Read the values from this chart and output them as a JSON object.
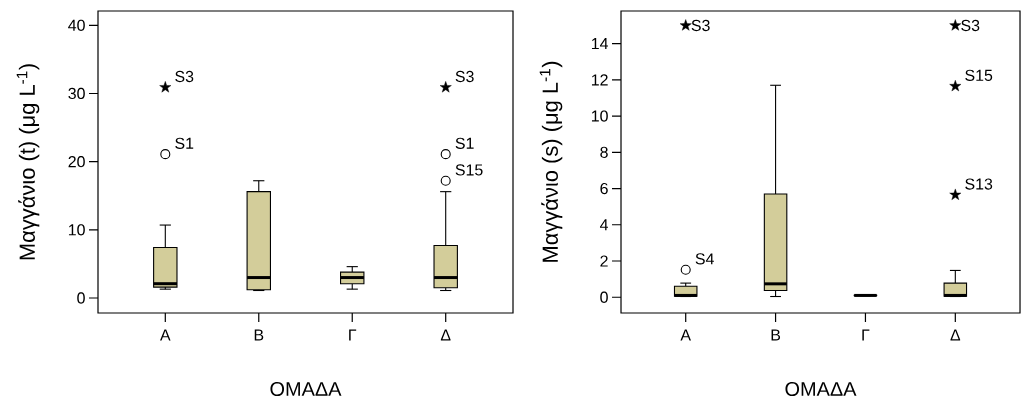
{
  "chart_data": [
    {
      "type": "box",
      "xlabel": "ΟΜΑΔΑ",
      "ylabel": "Μαγγάνιο (t)  (μg L$^{-1}$)",
      "categories": [
        "Α",
        "Β",
        "Γ",
        "Δ"
      ],
      "ylim": [
        -2.2,
        42.1
      ],
      "yticks": [
        0,
        10,
        20,
        30,
        40
      ],
      "series": [
        {
          "color": "#d3cd9a",
          "boxes": [
            {
              "low": 1.3,
              "q1": 1.6,
              "median": 2.1,
              "q3": 7.4,
              "high": 10.7
            },
            {
              "low": 1.1,
              "q1": 1.2,
              "median": 3.0,
              "q3": 15.6,
              "high": 17.2
            },
            {
              "low": 1.3,
              "q1": 2.1,
              "median": 3.0,
              "q3": 3.8,
              "high": 4.6
            },
            {
              "low": 1.1,
              "q1": 1.5,
              "median": 3.0,
              "q3": 7.7,
              "high": 15.6
            }
          ]
        },
        {
          "type": "scatter",
          "marker": "circle",
          "color": "#000000",
          "x": [
            "Α",
            "Δ",
            "Δ"
          ],
          "values": [
            21.1,
            21.1,
            17.2
          ]
        },
        {
          "type": "scatter",
          "marker": "star",
          "color": "#000000",
          "x": [
            "Α",
            "Δ"
          ],
          "values": [
            30.9,
            30.9
          ]
        }
      ],
      "annotations": [
        {
          "text": "S3",
          "x": "Α",
          "y": 30.9
        },
        {
          "text": "S1",
          "x": "Α",
          "y": 21.1
        },
        {
          "text": "S3",
          "x": "Δ",
          "y": 30.9
        },
        {
          "text": "S1",
          "x": "Δ",
          "y": 21.1
        },
        {
          "text": "S15",
          "x": "Δ",
          "y": 17.2
        }
      ]
    },
    {
      "type": "box",
      "xlabel": "ΟΜΑΔΑ",
      "ylabel": "Μαγγάνιο (s)  (μg L$^{-1}$)",
      "categories": [
        "Α",
        "Β",
        "Γ",
        "Δ"
      ],
      "ylim": [
        -0.87,
        15.8
      ],
      "yticks": [
        0,
        2,
        4,
        6,
        8,
        10,
        12,
        14
      ],
      "series": [
        {
          "color": "#d3cd9a",
          "boxes": [
            {
              "low": 0.04,
              "q1": 0.06,
              "median": 0.1,
              "q3": 0.61,
              "high": 0.78
            },
            {
              "low": 0.04,
              "q1": 0.37,
              "median": 0.74,
              "q3": 5.7,
              "high": 11.7
            },
            {
              "low": 0.08,
              "q1": 0.09,
              "median": 0.1,
              "q3": 0.11,
              "high": 0.12
            },
            {
              "low": 0.04,
              "q1": 0.06,
              "median": 0.1,
              "q3": 0.78,
              "high": 1.48
            }
          ]
        },
        {
          "type": "scatter",
          "marker": "circle",
          "color": "#000000",
          "x": [
            "Α"
          ],
          "values": [
            1.52
          ]
        },
        {
          "type": "scatter",
          "marker": "star",
          "color": "#000000",
          "x": [
            "Α",
            "Δ",
            "Δ",
            "Δ"
          ],
          "values": [
            15.0,
            15.0,
            11.65,
            5.65
          ]
        }
      ],
      "annotations": [
        {
          "text": "S3",
          "x": "Α",
          "y": 15.0
        },
        {
          "text": "S4",
          "x": "Α",
          "y": 1.52
        },
        {
          "text": "S3",
          "x": "Δ",
          "y": 15.0
        },
        {
          "text": "S15",
          "x": "Δ",
          "y": 11.65
        },
        {
          "text": "S13",
          "x": "Δ",
          "y": 5.65
        }
      ]
    }
  ]
}
